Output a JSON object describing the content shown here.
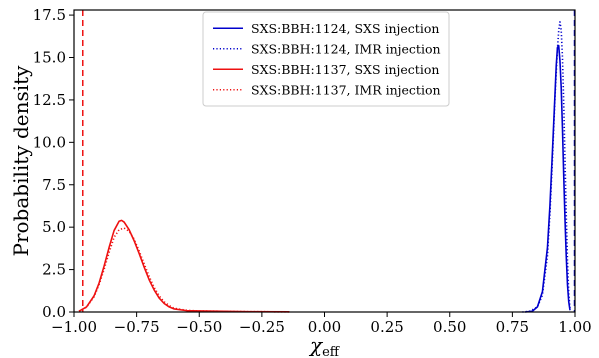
{
  "chart_data": {
    "type": "line",
    "title": "",
    "xlabel_main": "χ",
    "xlabel_sub": "eff",
    "ylabel": "Probability density",
    "xlim": [
      -1.0,
      1.0
    ],
    "ylim": [
      0,
      17.8
    ],
    "xticks": [
      "−1.00",
      "−0.75",
      "−0.50",
      "−0.25",
      "0.00",
      "0.25",
      "0.50",
      "0.75",
      "1.00"
    ],
    "xtick_values": [
      -1.0,
      -0.75,
      -0.5,
      -0.25,
      0.0,
      0.25,
      0.5,
      0.75,
      1.0
    ],
    "yticks": [
      "0.0",
      "2.5",
      "5.0",
      "7.5",
      "10.0",
      "12.5",
      "15.0",
      "17.5"
    ],
    "ytick_values": [
      0.0,
      2.5,
      5.0,
      7.5,
      10.0,
      12.5,
      15.0,
      17.5
    ],
    "grid": false,
    "legend_position": "upper center",
    "series": [
      {
        "name": "SXS:BBH:1124, SXS injection",
        "color": "#0000cc",
        "style": "solid",
        "x": [
          0.8,
          0.83,
          0.85,
          0.87,
          0.89,
          0.9,
          0.91,
          0.92,
          0.925,
          0.93,
          0.935,
          0.94,
          0.945,
          0.95,
          0.955,
          0.96,
          0.965,
          0.97,
          0.975,
          0.98
        ],
        "y": [
          0.0,
          0.05,
          0.3,
          1.2,
          3.8,
          6.3,
          9.5,
          12.8,
          14.5,
          15.6,
          15.7,
          14.8,
          13.2,
          10.8,
          8.0,
          5.5,
          3.3,
          1.6,
          0.6,
          0.1
        ]
      },
      {
        "name": "SXS:BBH:1124, IMR injection",
        "color": "#0000cc",
        "style": "dotted",
        "x": [
          0.79,
          0.82,
          0.85,
          0.87,
          0.89,
          0.9,
          0.91,
          0.92,
          0.93,
          0.935,
          0.94,
          0.945,
          0.95,
          0.955,
          0.96,
          0.965,
          0.97,
          0.975,
          0.98
        ],
        "y": [
          0.0,
          0.05,
          0.3,
          1.0,
          3.3,
          5.8,
          9.0,
          12.6,
          15.5,
          16.6,
          17.1,
          16.6,
          15.0,
          12.3,
          9.0,
          5.8,
          3.0,
          1.1,
          0.2
        ]
      },
      {
        "name": "SXS:BBH:1137, SXS injection",
        "color": "#ee1111",
        "style": "solid",
        "x": [
          -0.98,
          -0.95,
          -0.92,
          -0.9,
          -0.88,
          -0.86,
          -0.84,
          -0.82,
          -0.81,
          -0.8,
          -0.78,
          -0.76,
          -0.74,
          -0.72,
          -0.7,
          -0.68,
          -0.66,
          -0.64,
          -0.62,
          -0.6,
          -0.55,
          -0.5,
          -0.4,
          -0.3,
          -0.14
        ],
        "y": [
          0.05,
          0.3,
          0.95,
          1.7,
          2.7,
          3.8,
          4.8,
          5.35,
          5.4,
          5.3,
          4.85,
          4.2,
          3.45,
          2.65,
          1.9,
          1.3,
          0.82,
          0.5,
          0.3,
          0.18,
          0.08,
          0.06,
          0.04,
          0.02,
          0.01
        ]
      },
      {
        "name": "SXS:BBH:1137, IMR injection",
        "color": "#ee1111",
        "style": "dotted",
        "x": [
          -0.98,
          -0.95,
          -0.92,
          -0.9,
          -0.88,
          -0.86,
          -0.84,
          -0.82,
          -0.8,
          -0.78,
          -0.76,
          -0.74,
          -0.72,
          -0.7,
          -0.68,
          -0.66,
          -0.64,
          -0.62,
          -0.6,
          -0.55,
          -0.5,
          -0.4,
          -0.3,
          -0.14
        ],
        "y": [
          0.05,
          0.28,
          0.9,
          1.6,
          2.5,
          3.5,
          4.4,
          4.85,
          4.95,
          4.75,
          4.3,
          3.6,
          2.85,
          2.1,
          1.45,
          0.95,
          0.6,
          0.38,
          0.22,
          0.1,
          0.06,
          0.04,
          0.02,
          0.01
        ]
      }
    ],
    "vlines": [
      {
        "x": -0.965,
        "color": "#ee1111",
        "style": "dashed"
      },
      {
        "x": 0.998,
        "color": "#0000cc",
        "style": "dashed"
      }
    ]
  }
}
